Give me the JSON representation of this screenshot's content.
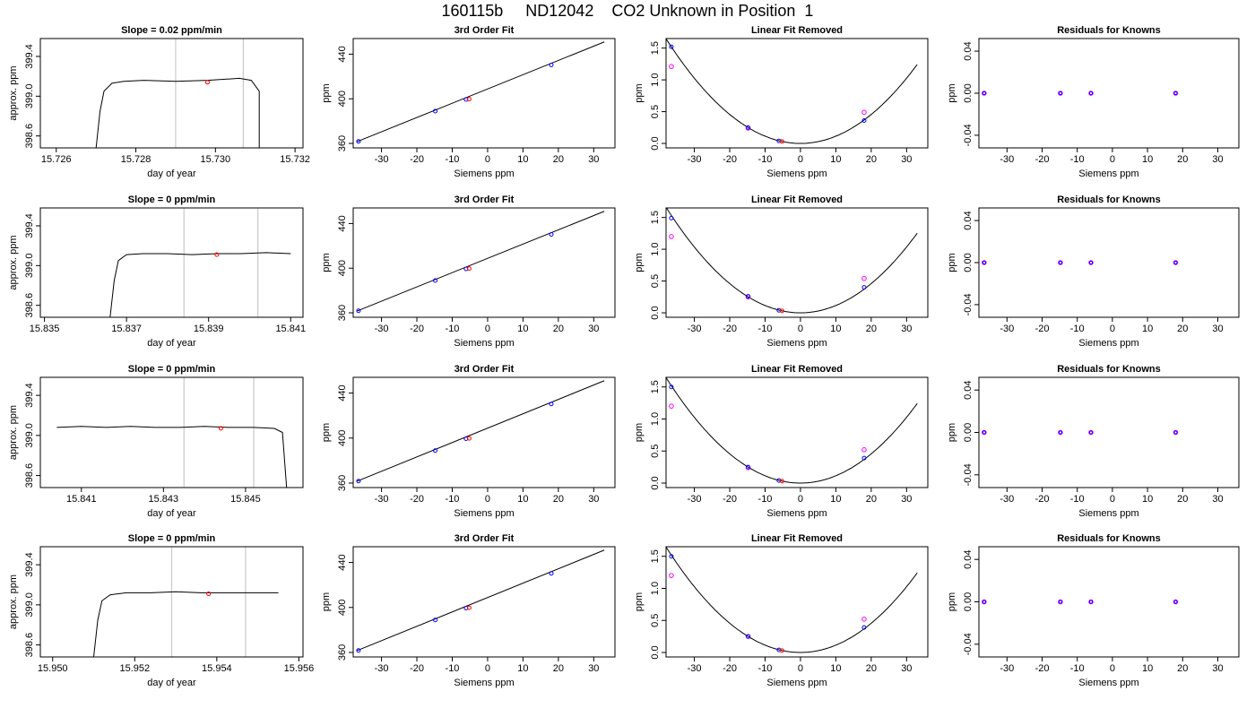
{
  "figure": {
    "title": "160115b     ND12042    CO2 Unknown in Position  1"
  },
  "chart_data": [
    {
      "type": "line",
      "panel": "timeseries",
      "row": 1,
      "title": "Slope =  0.02  ppm/min",
      "xlabel": "day of year",
      "ylabel": "approx. ppm",
      "xlim": [
        15.7256,
        15.7322
      ],
      "ylim": [
        398.48,
        399.58
      ],
      "xticks": [
        "15.726",
        "15.728",
        "15.730",
        "15.732"
      ],
      "xtick_values": [
        15.726,
        15.728,
        15.73,
        15.732
      ],
      "yticks": [
        "398.6",
        "399.0",
        "399.4"
      ],
      "ytick_values": [
        398.6,
        399.0,
        399.4
      ],
      "vlines": [
        15.729,
        15.7307
      ],
      "series": [
        {
          "x": [
            15.727,
            15.7271,
            15.7272,
            15.7274,
            15.7277,
            15.7282,
            15.729,
            15.7298,
            15.7306,
            15.7309,
            15.7311,
            15.7311
          ],
          "y": [
            398.48,
            398.85,
            399.05,
            399.13,
            399.15,
            399.16,
            399.15,
            399.16,
            399.18,
            399.16,
            399.05,
            398.48
          ]
        }
      ],
      "markers": [
        {
          "x": 15.7298,
          "y": 399.14,
          "color": "#ff0000"
        }
      ]
    },
    {
      "type": "line",
      "panel": "fit",
      "row": 1,
      "title": "3rd Order Fit",
      "xlabel": "Siemens ppm",
      "ylabel": "ppm",
      "xlim": [
        -38,
        36
      ],
      "ylim": [
        356,
        454
      ],
      "xticks": [
        "-30",
        "-20",
        "-10",
        "0",
        "10",
        "20",
        "30"
      ],
      "xtick_values": [
        -30,
        -20,
        -10,
        0,
        10,
        20,
        30
      ],
      "yticks": [
        "360",
        "400",
        "440"
      ],
      "ytick_values": [
        360,
        400,
        440
      ],
      "curve": {
        "x": [
          -37,
          33
        ],
        "y": [
          361.5,
          451
        ]
      },
      "points_blue": {
        "x": [
          -36.5,
          -14.8,
          -6.1,
          18.0
        ],
        "y": [
          361.8,
          388.9,
          399.4,
          430.3
        ]
      },
      "points_red": {
        "x": [
          -5.2
        ],
        "y": [
          399.7
        ]
      }
    },
    {
      "type": "line",
      "panel": "linear_removed",
      "row": 1,
      "title": "Linear Fit Removed",
      "xlabel": "Siemens ppm",
      "ylabel": "ppm",
      "xlim": [
        -38,
        36
      ],
      "ylim": [
        -0.07,
        1.65
      ],
      "xticks": [
        "-30",
        "-20",
        "-10",
        "0",
        "10",
        "20",
        "30"
      ],
      "xtick_values": [
        -30,
        -20,
        -10,
        0,
        10,
        20,
        30
      ],
      "yticks": [
        "0.0",
        "0.5",
        "1.0",
        "1.5"
      ],
      "ytick_values": [
        0,
        0.5,
        1.0,
        1.5
      ],
      "curve_coef": 0.00114,
      "points_blue": {
        "x": [
          -36.5,
          -14.8,
          -6.1,
          18.0
        ],
        "y": [
          1.52,
          0.25,
          0.04,
          0.36
        ]
      },
      "points_magenta": {
        "x": [
          -36.5,
          -14.8,
          18.0
        ],
        "y": [
          1.21,
          0.24,
          0.49
        ]
      },
      "points_red": {
        "x": [
          -5.2
        ],
        "y": [
          0.03
        ]
      }
    },
    {
      "type": "scatter",
      "panel": "residuals",
      "row": 1,
      "title": "Residuals for Knowns",
      "xlabel": "Siemens ppm",
      "ylabel": "ppm",
      "xlim": [
        -38,
        36
      ],
      "ylim": [
        -0.052,
        0.052
      ],
      "xticks": [
        "-30",
        "-20",
        "-10",
        "0",
        "10",
        "20",
        "30"
      ],
      "xtick_values": [
        -30,
        -20,
        -10,
        0,
        10,
        20,
        30
      ],
      "yticks": [
        "-0.04",
        "0.00",
        "0.04"
      ],
      "ytick_values": [
        -0.04,
        0,
        0.04
      ],
      "points": {
        "x": [
          -36.5,
          -14.8,
          -6.1,
          18.0
        ],
        "y": [
          0,
          0,
          0,
          0
        ]
      }
    },
    {
      "type": "line",
      "panel": "timeseries",
      "row": 2,
      "title": "Slope =  0  ppm/min",
      "xlabel": "day of year",
      "ylabel": "approx. ppm",
      "xlim": [
        15.8349,
        15.8413
      ],
      "ylim": [
        398.48,
        399.58
      ],
      "xticks": [
        "15.835",
        "15.837",
        "15.839",
        "15.841"
      ],
      "xtick_values": [
        15.835,
        15.837,
        15.839,
        15.841
      ],
      "yticks": [
        "398.6",
        "399.0",
        "399.4"
      ],
      "ytick_values": [
        398.6,
        399.0,
        399.4
      ],
      "vlines": [
        15.8384,
        15.8402
      ],
      "series": [
        {
          "x": [
            15.8366,
            15.8367,
            15.8368,
            15.837,
            15.8374,
            15.838,
            15.8386,
            15.8392,
            15.8398,
            15.8404,
            15.841
          ],
          "y": [
            398.48,
            398.85,
            399.05,
            399.11,
            399.12,
            399.12,
            399.11,
            399.12,
            399.12,
            399.13,
            399.12
          ]
        }
      ],
      "markers": [
        {
          "x": 15.8392,
          "y": 399.11,
          "color": "#ff0000"
        }
      ]
    },
    {
      "type": "line",
      "panel": "fit",
      "row": 2,
      "title": "3rd Order Fit",
      "xlabel": "Siemens ppm",
      "ylabel": "ppm",
      "xlim": [
        -38,
        36
      ],
      "ylim": [
        356,
        454
      ],
      "xticks": [
        "-30",
        "-20",
        "-10",
        "0",
        "10",
        "20",
        "30"
      ],
      "xtick_values": [
        -30,
        -20,
        -10,
        0,
        10,
        20,
        30
      ],
      "yticks": [
        "360",
        "400",
        "440"
      ],
      "ytick_values": [
        360,
        400,
        440
      ],
      "curve": {
        "x": [
          -37,
          33
        ],
        "y": [
          361.5,
          451
        ]
      },
      "points_blue": {
        "x": [
          -36.5,
          -14.8,
          -6.1,
          18.0
        ],
        "y": [
          361.8,
          388.9,
          399.4,
          430.3
        ]
      },
      "points_red": {
        "x": [
          -5.2
        ],
        "y": [
          399.7
        ]
      }
    },
    {
      "type": "line",
      "panel": "linear_removed",
      "row": 2,
      "title": "Linear Fit Removed",
      "xlabel": "Siemens ppm",
      "ylabel": "ppm",
      "xlim": [
        -38,
        36
      ],
      "ylim": [
        -0.07,
        1.65
      ],
      "xticks": [
        "-30",
        "-20",
        "-10",
        "0",
        "10",
        "20",
        "30"
      ],
      "xtick_values": [
        -30,
        -20,
        -10,
        0,
        10,
        20,
        30
      ],
      "yticks": [
        "0.0",
        "0.5",
        "1.0",
        "1.5"
      ],
      "ytick_values": [
        0,
        0.5,
        1.0,
        1.5
      ],
      "curve_coef": 0.00115,
      "points_blue": {
        "x": [
          -36.5,
          -14.8,
          -6.1,
          18.0
        ],
        "y": [
          1.49,
          0.26,
          0.04,
          0.4
        ]
      },
      "points_magenta": {
        "x": [
          -36.5,
          -14.8,
          18.0
        ],
        "y": [
          1.2,
          0.25,
          0.54
        ]
      },
      "points_red": {
        "x": [
          -5.2
        ],
        "y": [
          0.03
        ]
      }
    },
    {
      "type": "scatter",
      "panel": "residuals",
      "row": 2,
      "title": "Residuals for Knowns",
      "xlabel": "Siemens ppm",
      "ylabel": "ppm",
      "xlim": [
        -38,
        36
      ],
      "ylim": [
        -0.052,
        0.052
      ],
      "xticks": [
        "-30",
        "-20",
        "-10",
        "0",
        "10",
        "20",
        "30"
      ],
      "xtick_values": [
        -30,
        -20,
        -10,
        0,
        10,
        20,
        30
      ],
      "yticks": [
        "-0.04",
        "0.00",
        "0.04"
      ],
      "ytick_values": [
        -0.04,
        0,
        0.04
      ],
      "points": {
        "x": [
          -36.5,
          -14.8,
          -6.1,
          18.0
        ],
        "y": [
          0,
          0,
          0,
          0
        ]
      }
    },
    {
      "type": "line",
      "panel": "timeseries",
      "row": 3,
      "title": "Slope =  0  ppm/min",
      "xlabel": "day of year",
      "ylabel": "approx. ppm",
      "xlim": [
        15.84,
        15.8464
      ],
      "ylim": [
        398.48,
        399.58
      ],
      "xticks": [
        "15.841",
        "15.843",
        "15.845"
      ],
      "xtick_values": [
        15.841,
        15.843,
        15.845
      ],
      "yticks": [
        "398.6",
        "399.0",
        "399.4"
      ],
      "ytick_values": [
        398.6,
        399.0,
        399.4
      ],
      "vlines": [
        15.8435,
        15.8452
      ],
      "series": [
        {
          "x": [
            15.8404,
            15.841,
            15.8416,
            15.8422,
            15.8428,
            15.8434,
            15.844,
            15.8446,
            15.8452,
            15.8457,
            15.8459,
            15.846
          ],
          "y": [
            399.08,
            399.09,
            399.08,
            399.09,
            399.08,
            399.08,
            399.09,
            399.08,
            399.08,
            399.07,
            399.03,
            398.48
          ]
        }
      ],
      "markers": [
        {
          "x": 15.8444,
          "y": 399.07,
          "color": "#ff0000"
        }
      ]
    },
    {
      "type": "line",
      "panel": "fit",
      "row": 3,
      "title": "3rd Order Fit",
      "xlabel": "Siemens ppm",
      "ylabel": "ppm",
      "xlim": [
        -38,
        36
      ],
      "ylim": [
        356,
        454
      ],
      "xticks": [
        "-30",
        "-20",
        "-10",
        "0",
        "10",
        "20",
        "30"
      ],
      "xtick_values": [
        -30,
        -20,
        -10,
        0,
        10,
        20,
        30
      ],
      "yticks": [
        "360",
        "400",
        "440"
      ],
      "ytick_values": [
        360,
        400,
        440
      ],
      "curve": {
        "x": [
          -37,
          33
        ],
        "y": [
          361.5,
          451
        ]
      },
      "points_blue": {
        "x": [
          -36.5,
          -14.8,
          -6.1,
          18.0
        ],
        "y": [
          361.8,
          388.9,
          399.4,
          430.3
        ]
      },
      "points_red": {
        "x": [
          -5.2
        ],
        "y": [
          399.7
        ]
      }
    },
    {
      "type": "line",
      "panel": "linear_removed",
      "row": 3,
      "title": "Linear Fit Removed",
      "xlabel": "Siemens ppm",
      "ylabel": "ppm",
      "xlim": [
        -38,
        36
      ],
      "ylim": [
        -0.07,
        1.65
      ],
      "xticks": [
        "-30",
        "-20",
        "-10",
        "0",
        "10",
        "20",
        "30"
      ],
      "xtick_values": [
        -30,
        -20,
        -10,
        0,
        10,
        20,
        30
      ],
      "yticks": [
        "0.0",
        "0.5",
        "1.0",
        "1.5"
      ],
      "ytick_values": [
        0,
        0.5,
        1.0,
        1.5
      ],
      "curve_coef": 0.00114,
      "points_blue": {
        "x": [
          -36.5,
          -14.8,
          -6.1,
          18.0
        ],
        "y": [
          1.5,
          0.25,
          0.04,
          0.39
        ]
      },
      "points_magenta": {
        "x": [
          -36.5,
          -14.8,
          18.0
        ],
        "y": [
          1.2,
          0.24,
          0.52
        ]
      },
      "points_red": {
        "x": [
          -5.2
        ],
        "y": [
          0.03
        ]
      }
    },
    {
      "type": "scatter",
      "panel": "residuals",
      "row": 3,
      "title": "Residuals for Knowns",
      "xlabel": "Siemens ppm",
      "ylabel": "ppm",
      "xlim": [
        -38,
        36
      ],
      "ylim": [
        -0.052,
        0.052
      ],
      "xticks": [
        "-30",
        "-20",
        "-10",
        "0",
        "10",
        "20",
        "30"
      ],
      "xtick_values": [
        -30,
        -20,
        -10,
        0,
        10,
        20,
        30
      ],
      "yticks": [
        "-0.04",
        "0.00",
        "0.04"
      ],
      "ytick_values": [
        -0.04,
        0,
        0.04
      ],
      "points": {
        "x": [
          -36.5,
          -14.8,
          -6.1,
          18.0
        ],
        "y": [
          0,
          0,
          0,
          0
        ]
      }
    },
    {
      "type": "line",
      "panel": "timeseries",
      "row": 4,
      "title": "Slope =  0  ppm/min",
      "xlabel": "day of year",
      "ylabel": "approx. ppm",
      "xlim": [
        15.9497,
        15.9561
      ],
      "ylim": [
        398.48,
        399.58
      ],
      "xticks": [
        "15.950",
        "15.952",
        "15.954",
        "15.956"
      ],
      "xtick_values": [
        15.95,
        15.952,
        15.954,
        15.956
      ],
      "yticks": [
        "398.6",
        "399.0",
        "399.4"
      ],
      "ytick_values": [
        398.6,
        399.0,
        399.4
      ],
      "vlines": [
        15.9529,
        15.9547
      ],
      "series": [
        {
          "x": [
            15.951,
            15.9511,
            15.9512,
            15.9514,
            15.9518,
            15.9524,
            15.953,
            15.9536,
            15.9542,
            15.9548,
            15.9555
          ],
          "y": [
            398.48,
            398.85,
            399.04,
            399.1,
            399.12,
            399.12,
            399.13,
            399.12,
            399.12,
            399.12,
            399.12
          ]
        }
      ],
      "markers": [
        {
          "x": 15.9538,
          "y": 399.11,
          "color": "#ff0000"
        }
      ]
    },
    {
      "type": "line",
      "panel": "fit",
      "row": 4,
      "title": "3rd Order Fit",
      "xlabel": "Siemens ppm",
      "ylabel": "ppm",
      "xlim": [
        -38,
        36
      ],
      "ylim": [
        356,
        454
      ],
      "xticks": [
        "-30",
        "-20",
        "-10",
        "0",
        "10",
        "20",
        "30"
      ],
      "xtick_values": [
        -30,
        -20,
        -10,
        0,
        10,
        20,
        30
      ],
      "yticks": [
        "360",
        "400",
        "440"
      ],
      "ytick_values": [
        360,
        400,
        440
      ],
      "curve": {
        "x": [
          -37,
          33
        ],
        "y": [
          361.5,
          451
        ]
      },
      "points_blue": {
        "x": [
          -36.5,
          -14.8,
          -6.1,
          18.0
        ],
        "y": [
          361.8,
          388.9,
          399.4,
          430.3
        ]
      },
      "points_red": {
        "x": [
          -5.2
        ],
        "y": [
          399.7
        ]
      }
    },
    {
      "type": "line",
      "panel": "linear_removed",
      "row": 4,
      "title": "Linear Fit Removed",
      "xlabel": "Siemens ppm",
      "ylabel": "ppm",
      "xlim": [
        -38,
        36
      ],
      "ylim": [
        -0.07,
        1.65
      ],
      "xticks": [
        "-30",
        "-20",
        "-10",
        "0",
        "10",
        "20",
        "30"
      ],
      "xtick_values": [
        -30,
        -20,
        -10,
        0,
        10,
        20,
        30
      ],
      "yticks": [
        "0.0",
        "0.5",
        "1.0",
        "1.5"
      ],
      "ytick_values": [
        0,
        0.5,
        1.0,
        1.5
      ],
      "curve_coef": 0.00114,
      "points_blue": {
        "x": [
          -36.5,
          -14.8,
          -6.1,
          18.0
        ],
        "y": [
          1.5,
          0.25,
          0.04,
          0.39
        ]
      },
      "points_magenta": {
        "x": [
          -36.5,
          -14.8,
          18.0
        ],
        "y": [
          1.2,
          0.25,
          0.52
        ]
      },
      "points_red": {
        "x": [
          -5.2
        ],
        "y": [
          0.03
        ]
      }
    },
    {
      "type": "scatter",
      "panel": "residuals",
      "row": 4,
      "title": "Residuals for Knowns",
      "xlabel": "Siemens ppm",
      "ylabel": "ppm",
      "xlim": [
        -38,
        36
      ],
      "ylim": [
        -0.052,
        0.052
      ],
      "xticks": [
        "-30",
        "-20",
        "-10",
        "0",
        "10",
        "20",
        "30"
      ],
      "xtick_values": [
        -30,
        -20,
        -10,
        0,
        10,
        20,
        30
      ],
      "yticks": [
        "-0.04",
        "0.00",
        "0.04"
      ],
      "ytick_values": [
        -0.04,
        0,
        0.04
      ],
      "points": {
        "x": [
          -36.5,
          -14.8,
          -6.1,
          18.0
        ],
        "y": [
          0,
          0,
          0,
          0
        ]
      }
    }
  ],
  "colors": {
    "blue": "#0000ff",
    "magenta": "#ff00ff",
    "red": "#ff0000",
    "vline": "#c8c8c8",
    "axis": "#000000"
  }
}
